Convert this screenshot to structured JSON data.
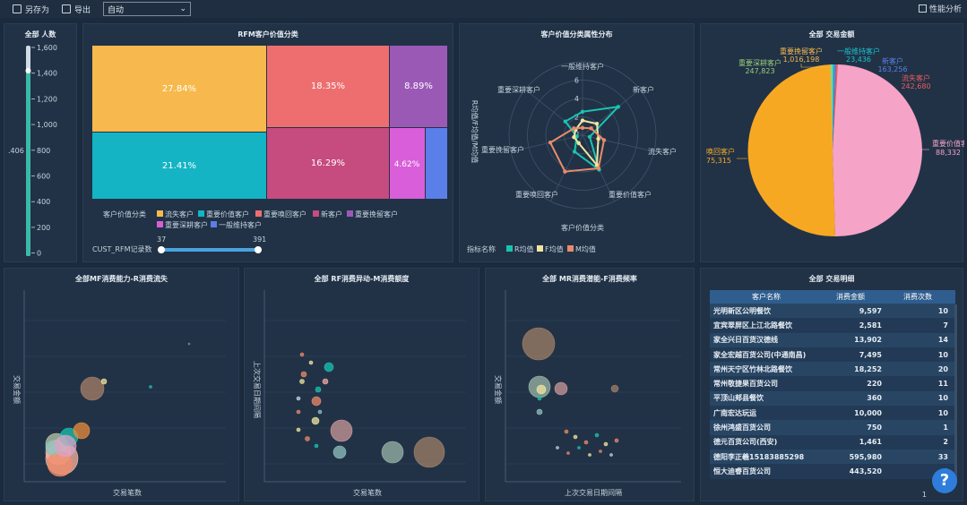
{
  "toolbar": {
    "save_as": "另存为",
    "export": "导出",
    "mode_select": "自动",
    "perf": "性能分析"
  },
  "panels": {
    "count_title": "全部 人数",
    "rfm_title": "RFM客户价值分类",
    "radar_title": "客户价值分类属性分布",
    "pie_title": "全部 交易金额",
    "mf_title": "全部MF消费能力-R消费流失",
    "rf_title": "全部 RF消费异动-M消费额度",
    "mr_title": "全部 MR消费潜能-F消费频率",
    "detail_title": "全部 交易明细"
  },
  "slider": {
    "ticks": [
      "1,600",
      "1,400",
      "1,200",
      "1,000",
      "800",
      "600",
      "400",
      "200",
      "0"
    ],
    "side_value": ".406"
  },
  "treemap": {
    "labels": [
      "27.84%",
      "18.35%",
      "8.89%",
      "21.41%",
      "16.29%",
      "4.62%"
    ],
    "legend_title": "客户价值分类",
    "legend": [
      {
        "name": "流失客户",
        "color": "#f7b94d"
      },
      {
        "name": "重要价值客户",
        "color": "#14b4c4"
      },
      {
        "name": "重要唤回客户",
        "color": "#ee6e70"
      },
      {
        "name": "新客户",
        "color": "#c64b7e"
      },
      {
        "name": "重要挽留客户",
        "color": "#9b59b6"
      },
      {
        "name": "重要深耕客户",
        "color": "#d95ed9"
      },
      {
        "name": "一般维持客户",
        "color": "#5a7fe8"
      }
    ],
    "range_label": "CUST_RFM记录数",
    "range_min": "37",
    "range_max": "391"
  },
  "radar": {
    "axes": [
      "一般维持客户",
      "新客户",
      "流失客户",
      "重要价值客户",
      "重要唤回客户",
      "重要挽留客户",
      "重要深耕客户"
    ],
    "rings": [
      "6",
      "4",
      "2",
      "0"
    ],
    "ylabel": "R均值/F均值/M均值",
    "xlabel": "客户价值分类",
    "legend_title": "指标名称",
    "legend": [
      {
        "name": "R均值",
        "color": "#19c3b0"
      },
      {
        "name": "F均值",
        "color": "#f0e6a0"
      },
      {
        "name": "M均值",
        "color": "#e98b6a"
      }
    ]
  },
  "pie": {
    "labels": [
      {
        "name": "重要挽留客户",
        "value": "1,016,198",
        "color": "#f7b94d"
      },
      {
        "name": "一般维持客户",
        "value": "23,436",
        "color": "#19c3d0"
      },
      {
        "name": "重要深耕客户",
        "value": "247,823",
        "color": "#9acd7a"
      },
      {
        "name": "新客户",
        "value": "163,256",
        "color": "#5a7fe8"
      },
      {
        "name": "流失客户",
        "value": "242,680",
        "color": "#ee5c5c"
      },
      {
        "name": "重要价值客户",
        "value": "88,332",
        "color": "#f6a3c8"
      },
      {
        "name": "唤回客户",
        "value": "75,315",
        "color": "#f7a823"
      }
    ]
  },
  "scatter": {
    "mf_x": "交易笔数",
    "mf_y": "交易金额",
    "rf_x": "交易笔数",
    "rf_y": "上次交易日期间隔",
    "mr_x": "上次交易日期间隔",
    "mr_y": "交易金额"
  },
  "detail": {
    "headers": [
      "客户名称",
      "消费金额",
      "消费次数"
    ],
    "rows": [
      [
        "光明新区公明餐饮",
        "9,597",
        "10"
      ],
      [
        "宜宾翠屏区上江北路餐饮",
        "2,581",
        "7"
      ],
      [
        "家全兴日百货汉德线",
        "13,902",
        "14"
      ],
      [
        "家全宏越百货公司(中通南昌)",
        "7,495",
        "10"
      ],
      [
        "常州天宁区竹林北路餐饮",
        "18,252",
        "20"
      ],
      [
        "常州敬捷果百货公司",
        "220",
        "11"
      ],
      [
        "平顶山郏县餐饮",
        "360",
        "10"
      ],
      [
        "广南宏达玩运",
        "10,000",
        "10"
      ],
      [
        "徐州鸿盛百货公司",
        "750",
        "1"
      ],
      [
        "德元百货公司(西安)",
        "1,461",
        "2"
      ],
      [
        "德阳李正羲15183885298",
        "595,980",
        "33"
      ],
      [
        "恒大迪睿百货公司",
        "443,520",
        "1"
      ]
    ],
    "page": "1"
  }
}
